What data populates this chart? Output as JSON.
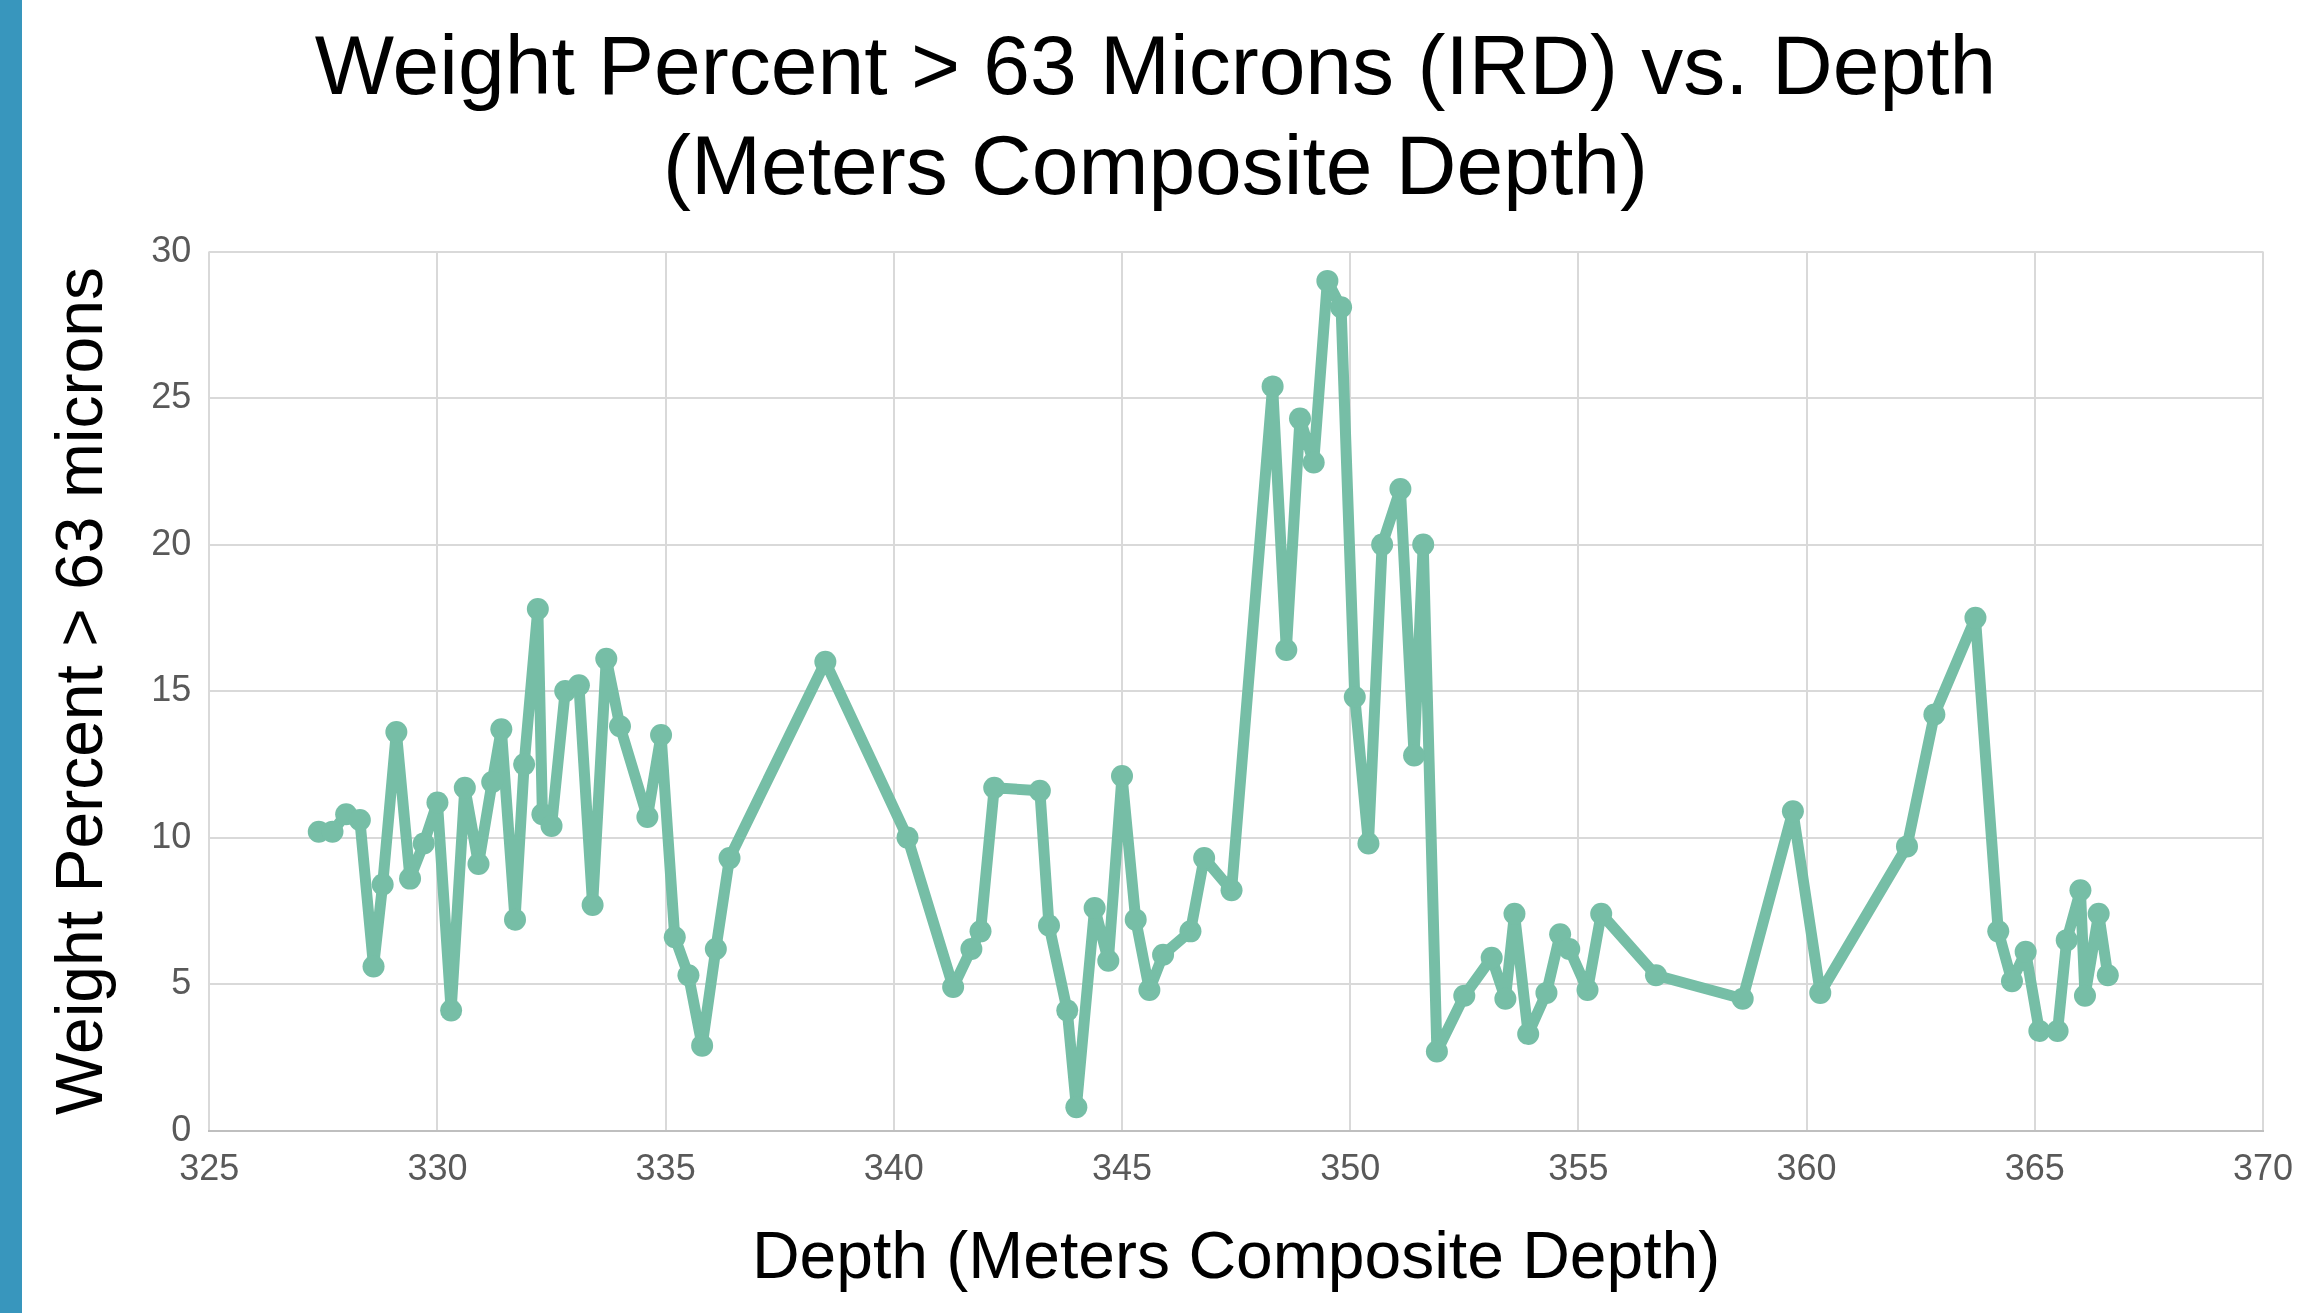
{
  "chart_data": {
    "type": "line",
    "title": "Weight Percent > 63 Microns (IRD) vs. Depth (Meters Composite Depth)",
    "xlabel": "Depth (Meters Composite Depth)",
    "ylabel": "Weight Percent > 63 microns",
    "x": [
      327.4,
      327.7,
      328.0,
      328.3,
      328.6,
      328.8,
      329.1,
      329.4,
      329.7,
      330.0,
      330.3,
      330.6,
      330.9,
      331.2,
      331.4,
      331.7,
      331.9,
      332.2,
      332.3,
      332.5,
      332.8,
      333.1,
      333.4,
      333.7,
      334.0,
      334.6,
      334.9,
      335.2,
      335.5,
      335.8,
      336.1,
      336.4,
      338.5,
      340.3,
      341.3,
      341.7,
      341.9,
      342.2,
      343.2,
      343.4,
      343.8,
      344.0,
      344.4,
      344.7,
      345.0,
      345.3,
      345.6,
      345.9,
      346.5,
      346.8,
      347.4,
      348.3,
      348.6,
      348.9,
      349.2,
      349.5,
      349.8,
      350.1,
      350.4,
      350.7,
      351.1,
      351.4,
      351.6,
      351.9,
      352.5,
      353.1,
      353.4,
      353.6,
      353.9,
      354.3,
      354.6,
      354.8,
      355.2,
      355.5,
      356.7,
      358.6,
      359.7,
      360.3,
      362.2,
      362.8,
      363.7,
      364.2,
      364.5,
      364.8,
      365.1,
      365.5,
      365.7,
      366.0,
      366.1,
      366.4,
      366.6
    ],
    "series": [
      {
        "color": "#76bea6",
        "values": [
          10.2,
          10.2,
          10.8,
          10.6,
          5.6,
          8.4,
          13.6,
          8.6,
          9.8,
          11.2,
          4.1,
          11.7,
          9.1,
          11.9,
          13.7,
          7.2,
          12.5,
          17.8,
          10.8,
          10.4,
          15.0,
          15.2,
          7.7,
          16.1,
          13.8,
          10.7,
          13.5,
          6.6,
          5.3,
          2.9,
          6.2,
          9.3,
          16.0,
          10.0,
          4.9,
          6.2,
          6.8,
          11.7,
          11.6,
          7.0,
          4.1,
          0.8,
          7.6,
          5.8,
          12.1,
          7.2,
          4.8,
          6.0,
          6.8,
          9.3,
          8.2,
          25.4,
          16.4,
          24.3,
          22.8,
          29.0,
          28.1,
          14.8,
          9.8,
          20.0,
          21.9,
          12.8,
          20.0,
          2.7,
          4.6,
          5.9,
          4.5,
          7.4,
          3.3,
          4.7,
          6.7,
          6.2,
          4.8,
          7.4,
          5.3,
          4.5,
          10.9,
          4.7,
          9.7,
          14.2,
          17.5,
          6.8,
          5.1,
          6.1,
          3.4,
          3.4,
          6.5,
          8.2,
          4.6,
          7.4,
          5.3
        ]
      }
    ],
    "xlim": [
      325,
      370
    ],
    "xticks": [
      325,
      330,
      335,
      340,
      345,
      350,
      355,
      360,
      365,
      370
    ],
    "ylim": [
      0,
      30
    ],
    "yticks": [
      0,
      5,
      10,
      15,
      20,
      25,
      30
    ],
    "grid": true,
    "marker": "circle",
    "line_style": "solid"
  }
}
